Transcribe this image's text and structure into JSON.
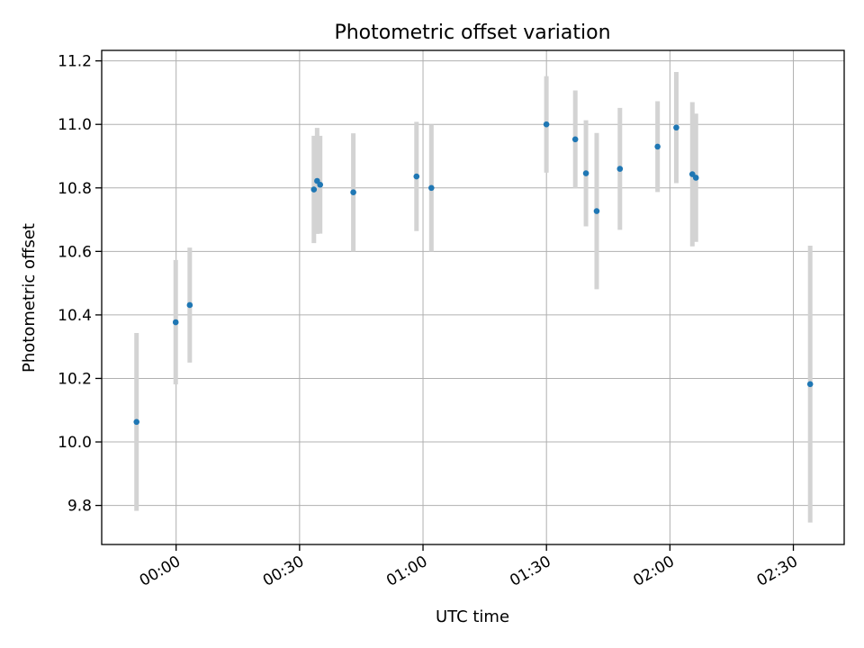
{
  "chart_data": {
    "type": "scatter",
    "title": "Photometric offset variation",
    "xlabel": "UTC time",
    "ylabel": "Photometric offset",
    "xlim": [
      "23:41:55",
      "02:42:21"
    ],
    "ylim": [
      9.677,
      11.233
    ],
    "grid": true,
    "x_ticks": [
      "00:00",
      "00:30",
      "01:00",
      "01:30",
      "02:00",
      "02:30"
    ],
    "y_ticks": [
      "9.8",
      "10.0",
      "10.2",
      "10.4",
      "10.6",
      "10.8",
      "11.0",
      "11.2"
    ],
    "series": [
      {
        "marker_color": "#1f77b4",
        "errorbar_color": "#d3d3d3",
        "points": [
          {
            "x": "23:50:23",
            "y": 10.063,
            "y_low": 9.783,
            "y_high": 10.343
          },
          {
            "x": "23:59:54",
            "y": 10.377,
            "y_low": 10.181,
            "y_high": 10.573
          },
          {
            "x": "00:03:19",
            "y": 10.431,
            "y_low": 10.25,
            "y_high": 10.612
          },
          {
            "x": "00:33:29",
            "y": 10.795,
            "y_low": 10.626,
            "y_high": 10.964
          },
          {
            "x": "00:34:16",
            "y": 10.822,
            "y_low": 10.655,
            "y_high": 10.989
          },
          {
            "x": "00:35:00",
            "y": 10.81,
            "y_low": 10.656,
            "y_high": 10.964
          },
          {
            "x": "00:43:04",
            "y": 10.786,
            "y_low": 10.6,
            "y_high": 10.972
          },
          {
            "x": "00:58:25",
            "y": 10.836,
            "y_low": 10.664,
            "y_high": 11.008
          },
          {
            "x": "01:02:02",
            "y": 10.8,
            "y_low": 10.6,
            "y_high": 11.0
          },
          {
            "x": "01:29:59",
            "y": 11.0,
            "y_low": 10.848,
            "y_high": 11.152
          },
          {
            "x": "01:37:00",
            "y": 10.953,
            "y_low": 10.799,
            "y_high": 11.107
          },
          {
            "x": "01:39:36",
            "y": 10.846,
            "y_low": 10.679,
            "y_high": 11.013
          },
          {
            "x": "01:42:12",
            "y": 10.727,
            "y_low": 10.481,
            "y_high": 10.973
          },
          {
            "x": "01:47:51",
            "y": 10.86,
            "y_low": 10.668,
            "y_high": 11.052
          },
          {
            "x": "01:57:00",
            "y": 10.93,
            "y_low": 10.787,
            "y_high": 11.073
          },
          {
            "x": "02:01:33",
            "y": 10.99,
            "y_low": 10.815,
            "y_high": 11.165
          },
          {
            "x": "02:05:27",
            "y": 10.843,
            "y_low": 10.616,
            "y_high": 11.07
          },
          {
            "x": "02:06:19",
            "y": 10.832,
            "y_low": 10.63,
            "y_high": 11.034
          },
          {
            "x": "02:34:05",
            "y": 10.182,
            "y_low": 9.746,
            "y_high": 10.618
          }
        ]
      }
    ]
  }
}
